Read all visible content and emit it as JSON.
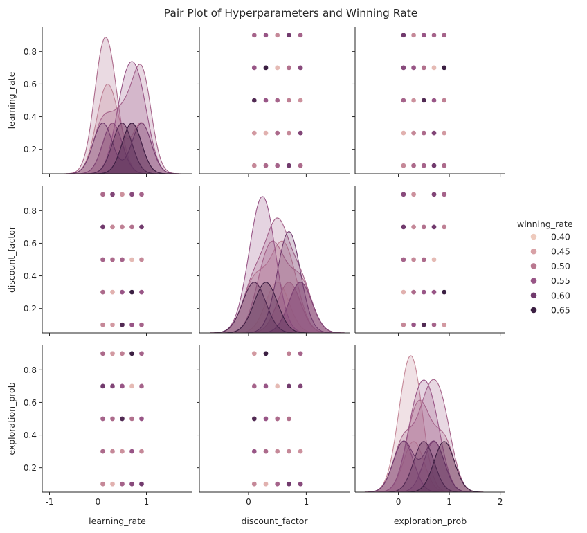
{
  "chart_data": {
    "type": "scatter",
    "title": "Pair Plot of Hyperparameters and Winning Rate",
    "variables": [
      "learning_rate",
      "discount_factor",
      "exploration_prob"
    ],
    "hue": "winning_rate",
    "diag_kind": "kde",
    "axis_limits": {
      "learning_rate": [
        -1.15,
        1.95
      ],
      "discount_factor": [
        -0.85,
        1.75
      ],
      "exploration_prob": [
        -0.85,
        2.1
      ]
    },
    "y_limits": [
      0.05,
      0.95
    ],
    "x_ticks": {
      "learning_rate": [
        -1,
        0,
        1
      ],
      "discount_factor": [
        0,
        1
      ],
      "exploration_prob": [
        0,
        1,
        2
      ]
    },
    "y_ticks": [
      0.2,
      0.4,
      0.6,
      0.8
    ],
    "x_tick_labels": {
      "learning_rate": [
        "-1",
        "0",
        "1"
      ],
      "discount_factor": [
        "0",
        "1"
      ],
      "exploration_prob": [
        "0",
        "1",
        "2"
      ]
    },
    "y_tick_labels": [
      "0.2",
      "0.4",
      "0.6",
      "0.8"
    ],
    "legend": {
      "title": "winning_rate",
      "placement": "center-right",
      "levels": [
        0.4,
        0.45,
        0.5,
        0.55,
        0.6,
        0.65
      ],
      "labels": [
        "0.40",
        "0.45",
        "0.50",
        "0.55",
        "0.60",
        "0.65"
      ],
      "colors": [
        "#eecabd",
        "#d8a1a6",
        "#b9788f",
        "#985586",
        "#713a6d",
        "#3b1f42"
      ]
    },
    "records": [
      [
        0.1,
        0.1,
        0.1,
        0.48
      ],
      [
        0.1,
        0.3,
        0.3,
        0.52
      ],
      [
        0.1,
        0.5,
        0.5,
        0.53
      ],
      [
        0.1,
        0.7,
        0.7,
        0.6
      ],
      [
        0.1,
        0.9,
        0.9,
        0.52
      ],
      [
        0.3,
        0.1,
        0.9,
        0.46
      ],
      [
        0.3,
        0.3,
        0.1,
        0.43
      ],
      [
        0.3,
        0.5,
        0.5,
        0.52
      ],
      [
        0.3,
        0.7,
        0.3,
        0.48
      ],
      [
        0.3,
        0.9,
        0.7,
        0.58
      ],
      [
        0.5,
        0.1,
        0.5,
        0.63
      ],
      [
        0.5,
        0.3,
        0.7,
        0.55
      ],
      [
        0.5,
        0.5,
        0.1,
        0.53
      ],
      [
        0.5,
        0.7,
        0.9,
        0.49
      ],
      [
        0.5,
        0.9,
        0.3,
        0.47
      ],
      [
        0.7,
        0.1,
        0.3,
        0.55
      ],
      [
        0.7,
        0.3,
        0.9,
        0.65
      ],
      [
        0.7,
        0.5,
        0.7,
        0.42
      ],
      [
        0.7,
        0.7,
        0.5,
        0.51
      ],
      [
        0.7,
        0.9,
        0.1,
        0.57
      ],
      [
        0.9,
        0.1,
        0.7,
        0.53
      ],
      [
        0.9,
        0.3,
        0.5,
        0.55
      ],
      [
        0.9,
        0.5,
        0.3,
        0.48
      ],
      [
        0.9,
        0.7,
        0.1,
        0.6
      ],
      [
        0.9,
        0.9,
        0.9,
        0.53
      ]
    ]
  }
}
